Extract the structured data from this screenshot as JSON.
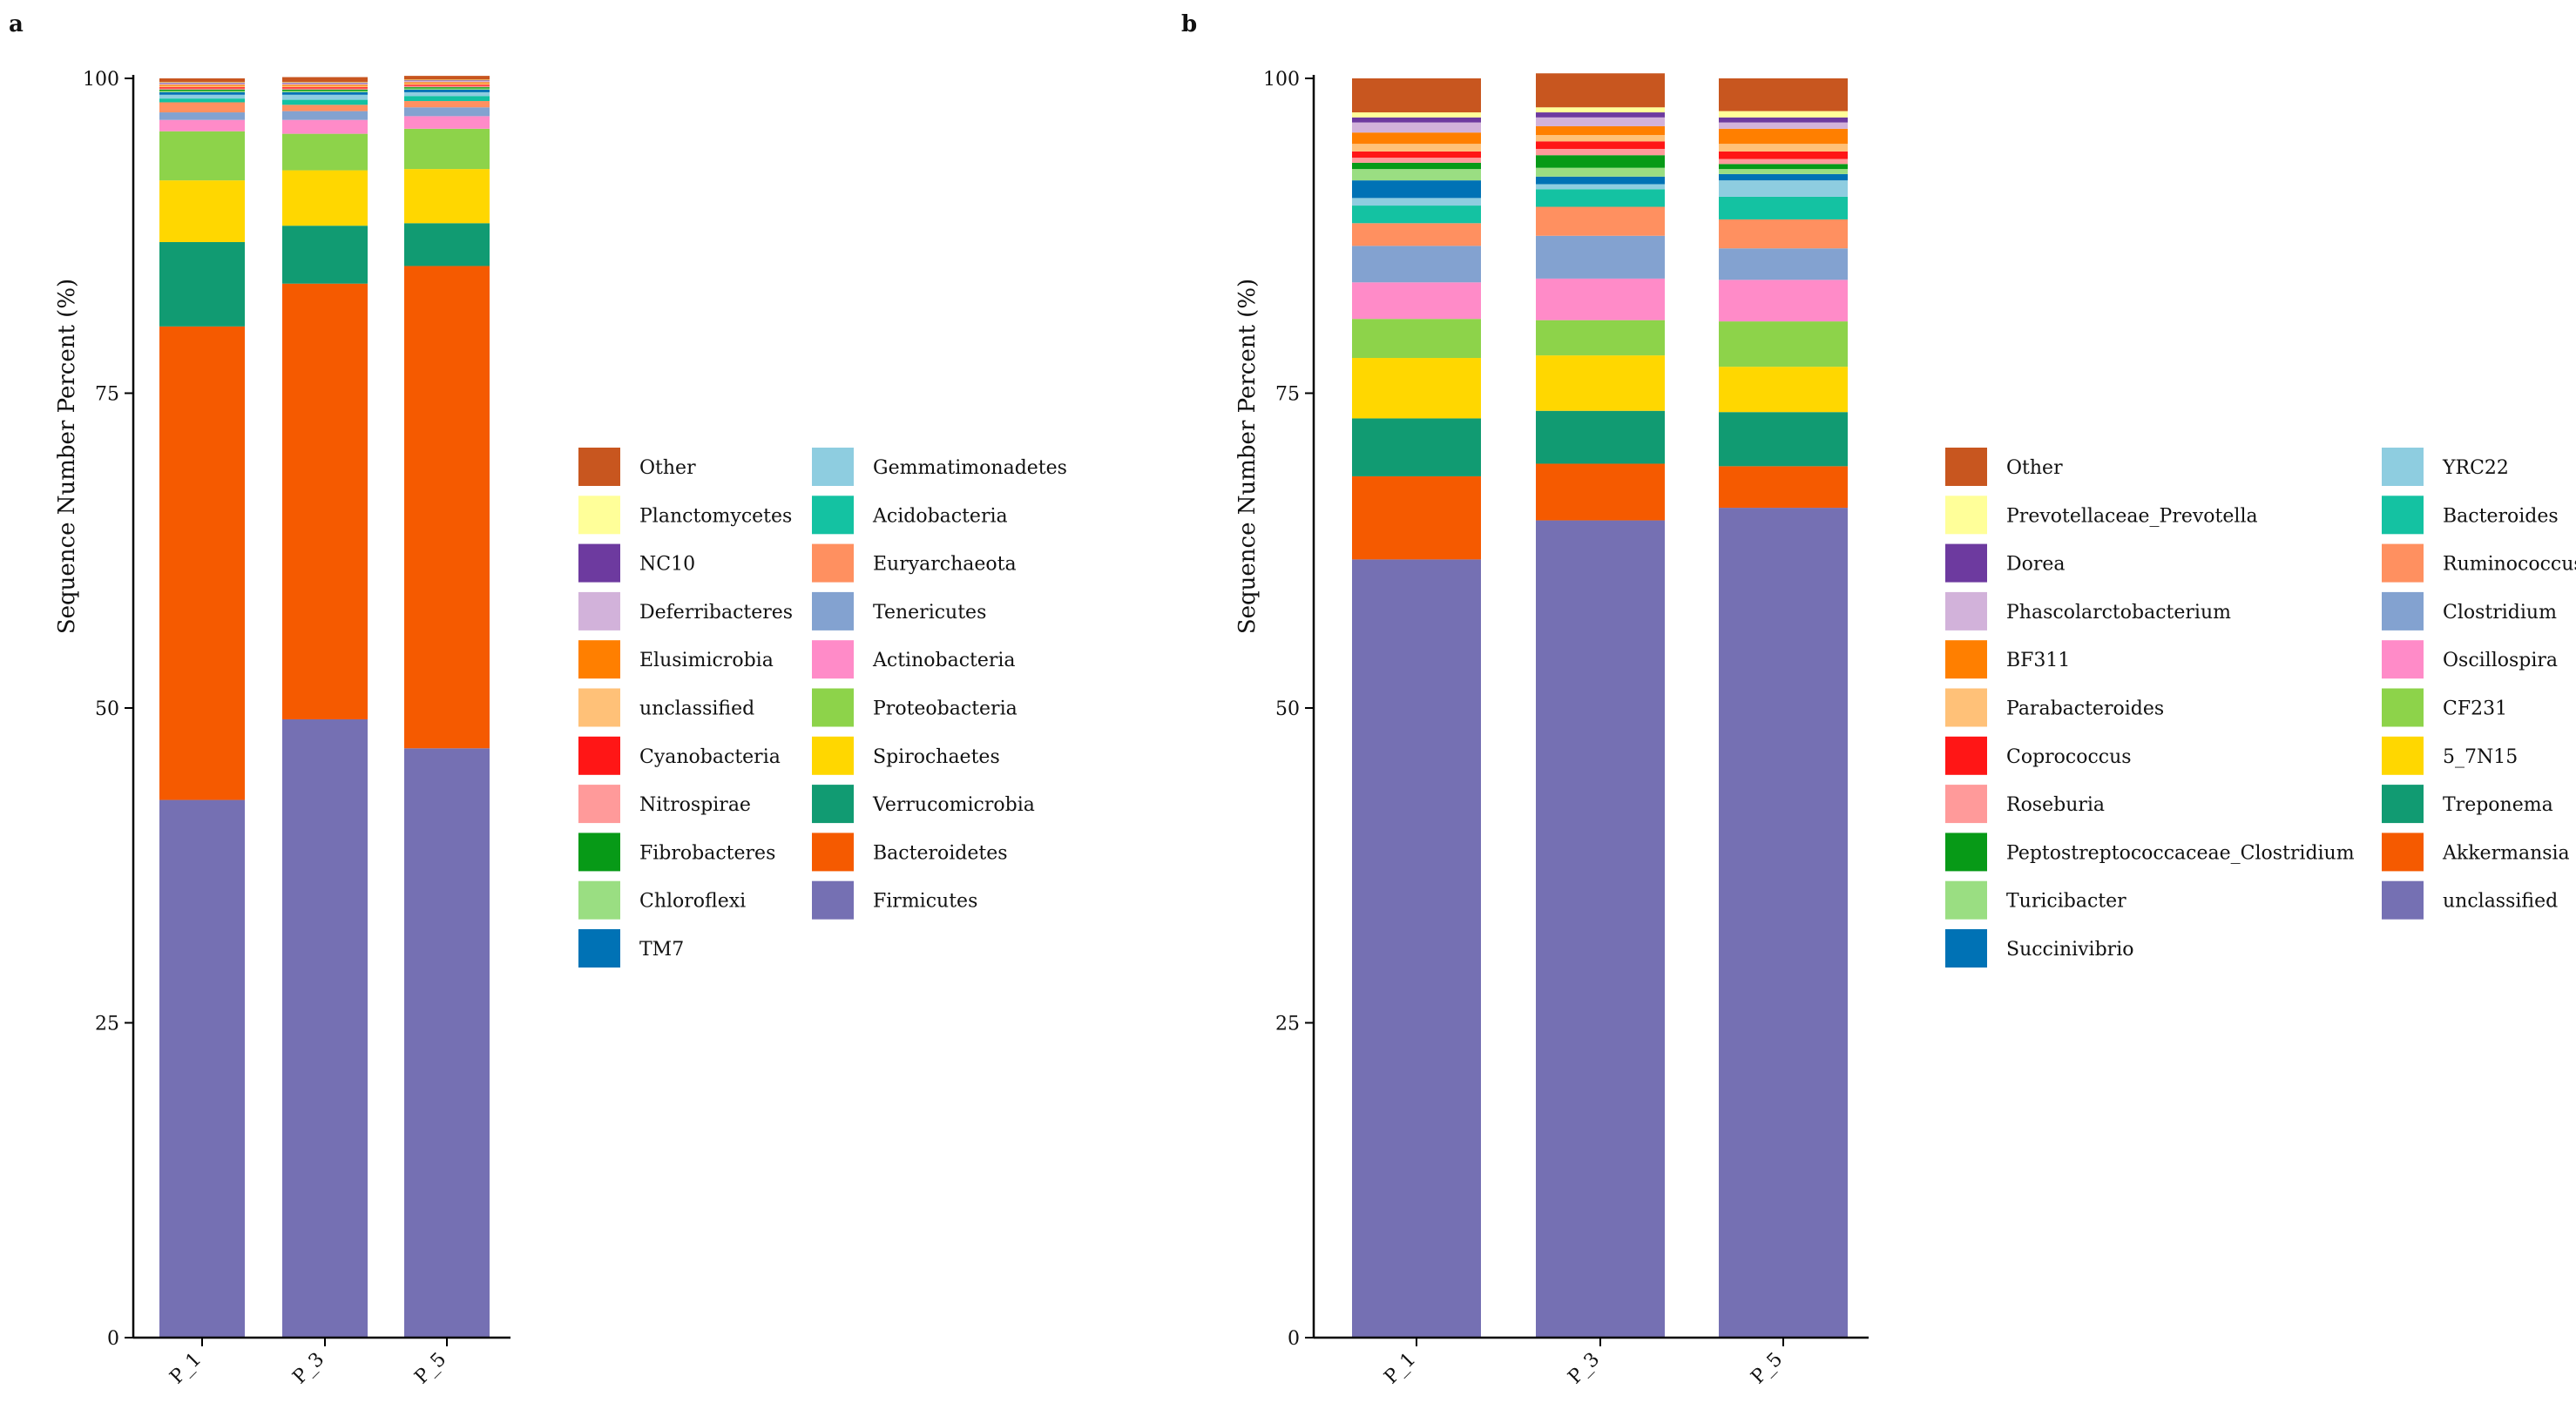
{
  "chart_data": [
    {
      "panel": "a",
      "type": "bar",
      "stacked": true,
      "ylabel": "Sequence Number Percent (%)",
      "ylim": [
        0,
        100
      ],
      "yticks": [
        0,
        25,
        50,
        75,
        100
      ],
      "categories": [
        "P_1",
        "P_3",
        "P_5"
      ],
      "legend": {
        "position": "right",
        "columns": 2
      },
      "series": [
        {
          "name": "Firmicutes",
          "color": "#7570b3",
          "values": [
            42.7,
            49.1,
            46.8
          ]
        },
        {
          "name": "Bacteroidetes",
          "color": "#f55a00",
          "values": [
            37.6,
            34.6,
            38.3
          ]
        },
        {
          "name": "Verrucomicrobia",
          "color": "#119b72",
          "values": [
            6.7,
            4.6,
            3.4
          ]
        },
        {
          "name": "Spirochaetes",
          "color": "#ffd700",
          "values": [
            4.9,
            4.4,
            4.3
          ]
        },
        {
          "name": "Proteobacteria",
          "color": "#8dd34a",
          "values": [
            3.9,
            2.9,
            3.2
          ]
        },
        {
          "name": "Actinobacteria",
          "color": "#ff8bc8",
          "values": [
            0.9,
            1.1,
            1.0
          ]
        },
        {
          "name": "Tenericutes",
          "color": "#83a2d0",
          "values": [
            0.6,
            0.7,
            0.7
          ]
        },
        {
          "name": "Euryarchaeota",
          "color": "#ff9060",
          "values": [
            0.8,
            0.5,
            0.5
          ]
        },
        {
          "name": "Acidobacteria",
          "color": "#14c2a2",
          "values": [
            0.3,
            0.4,
            0.4
          ]
        },
        {
          "name": "Gemmatimonadetes",
          "color": "#8ecde0",
          "values": [
            0.3,
            0.4,
            0.3
          ]
        },
        {
          "name": "TM7",
          "color": "#0072b5",
          "values": [
            0.2,
            0.2,
            0.2
          ]
        },
        {
          "name": "Chloroflexi",
          "color": "#9ade82",
          "values": [
            0.1,
            0.1,
            0.1
          ]
        },
        {
          "name": "Fibrobacteres",
          "color": "#079a17",
          "values": [
            0.1,
            0.1,
            0.1
          ]
        },
        {
          "name": "Nitrospirae",
          "color": "#ff9a9a",
          "values": [
            0.1,
            0.1,
            0.1
          ]
        },
        {
          "name": "Cyanobacteria",
          "color": "#ff1616",
          "values": [
            0.1,
            0.1,
            0.1
          ]
        },
        {
          "name": "unclassified",
          "color": "#ffc178",
          "values": [
            0.1,
            0.1,
            0.1
          ]
        },
        {
          "name": "Elusimicrobia",
          "color": "#ff7f00",
          "values": [
            0.1,
            0.1,
            0.1
          ]
        },
        {
          "name": "Deferribacteres",
          "color": "#d2b2da",
          "values": [
            0.1,
            0.1,
            0.1
          ]
        },
        {
          "name": "NC10",
          "color": "#6d3a9f",
          "values": [
            0.05,
            0.05,
            0.05
          ]
        },
        {
          "name": "Planctomycetes",
          "color": "#ffff99",
          "values": [
            0.05,
            0.05,
            0.05
          ]
        },
        {
          "name": "Other",
          "color": "#c8561f",
          "values": [
            0.3,
            0.4,
            0.3
          ]
        }
      ],
      "legend_order": [
        "Other",
        "Planctomycetes",
        "NC10",
        "Deferribacteres",
        "Elusimicrobia",
        "unclassified",
        "Cyanobacteria",
        "Nitrospirae",
        "Fibrobacteres",
        "Chloroflexi",
        "TM7",
        "Gemmatimonadetes",
        "Acidobacteria",
        "Euryarchaeota",
        "Tenericutes",
        "Actinobacteria",
        "Proteobacteria",
        "Spirochaetes",
        "Verrucomicrobia",
        "Bacteroidetes",
        "Firmicutes"
      ]
    },
    {
      "panel": "b",
      "type": "bar",
      "stacked": true,
      "ylabel": "Sequence Number Percent (%)",
      "ylim": [
        0,
        100
      ],
      "yticks": [
        0,
        25,
        50,
        75,
        100
      ],
      "categories": [
        "P_1",
        "P_3",
        "P_5"
      ],
      "legend": {
        "position": "right",
        "columns": 2
      },
      "series": [
        {
          "name": "unclassified",
          "color": "#7570b3",
          "values": [
            61.8,
            64.9,
            65.9
          ]
        },
        {
          "name": "Akkermansia",
          "color": "#f55a00",
          "values": [
            6.6,
            4.5,
            3.3
          ]
        },
        {
          "name": "Treponema",
          "color": "#119b72",
          "values": [
            4.6,
            4.2,
            4.3
          ]
        },
        {
          "name": "5_7N15",
          "color": "#ffd700",
          "values": [
            4.8,
            4.4,
            3.6
          ]
        },
        {
          "name": "CF231",
          "color": "#8dd34a",
          "values": [
            3.1,
            2.8,
            3.6
          ]
        },
        {
          "name": "Oscillospira",
          "color": "#ff8bc8",
          "values": [
            2.9,
            3.3,
            3.3
          ]
        },
        {
          "name": "Clostridium",
          "color": "#83a2d0",
          "values": [
            2.9,
            3.4,
            2.5
          ]
        },
        {
          "name": "Ruminococcus",
          "color": "#ff9060",
          "values": [
            1.8,
            2.3,
            2.3
          ]
        },
        {
          "name": "Bacteroides",
          "color": "#14c2a2",
          "values": [
            1.4,
            1.4,
            1.8
          ]
        },
        {
          "name": "YRC22",
          "color": "#8ecde0",
          "values": [
            0.6,
            0.4,
            1.3
          ]
        },
        {
          "name": "Succinivibrio",
          "color": "#0072b5",
          "values": [
            1.4,
            0.6,
            0.5
          ]
        },
        {
          "name": "Turicibacter",
          "color": "#9ade82",
          "values": [
            0.9,
            0.7,
            0.4
          ]
        },
        {
          "name": "Peptostreptococcaceae_Clostridium",
          "color": "#079a17",
          "values": [
            0.5,
            1.0,
            0.4
          ]
        },
        {
          "name": "Roseburia",
          "color": "#ff9a9a",
          "values": [
            0.4,
            0.5,
            0.4
          ]
        },
        {
          "name": "Coprococcus",
          "color": "#ff1616",
          "values": [
            0.5,
            0.6,
            0.6
          ]
        },
        {
          "name": "Parabacteroides",
          "color": "#ffc178",
          "values": [
            0.6,
            0.5,
            0.6
          ]
        },
        {
          "name": "BF311",
          "color": "#ff7f00",
          "values": [
            0.9,
            0.7,
            1.2
          ]
        },
        {
          "name": "Phascolarctobacterium",
          "color": "#d2b2da",
          "values": [
            0.8,
            0.7,
            0.5
          ]
        },
        {
          "name": "Dorea",
          "color": "#6d3a9f",
          "values": [
            0.4,
            0.4,
            0.4
          ]
        },
        {
          "name": "Prevotellaceae_Prevotella",
          "color": "#ffff99",
          "values": [
            0.4,
            0.4,
            0.5
          ]
        },
        {
          "name": "Other",
          "color": "#c8561f",
          "values": [
            2.7,
            2.7,
            2.6
          ]
        }
      ],
      "legend_order": [
        "Other",
        "Prevotellaceae_Prevotella",
        "Dorea",
        "Phascolarctobacterium",
        "BF311",
        "Parabacteroides",
        "Coprococcus",
        "Roseburia",
        "Peptostreptococcaceae_Clostridium",
        "Turicibacter",
        "Succinivibrio",
        "YRC22",
        "Bacteroides",
        "Ruminococcus",
        "Clostridium",
        "Oscillospira",
        "CF231",
        "5_7N15",
        "Treponema",
        "Akkermansia",
        "unclassified"
      ]
    }
  ]
}
